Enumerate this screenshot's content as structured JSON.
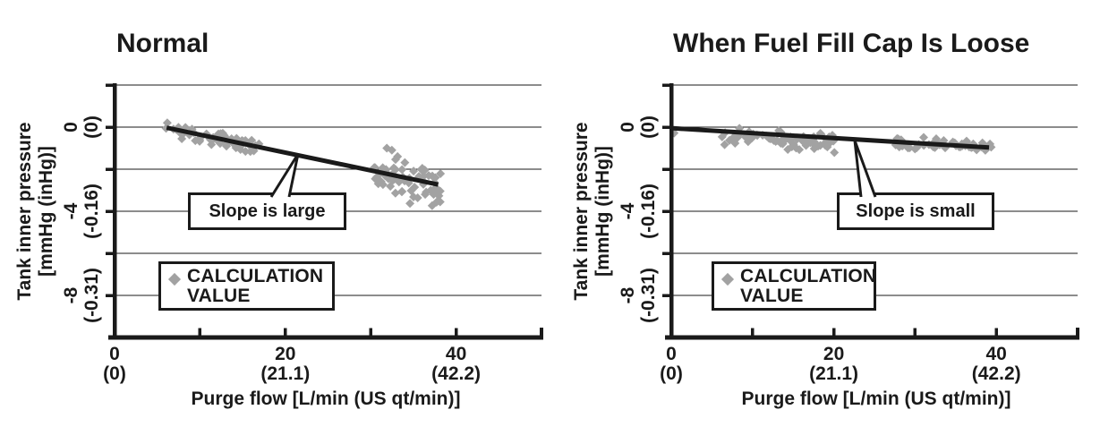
{
  "colors": {
    "ink": "#1a1a1a",
    "marker_gray": "#a2a2a2",
    "background": "#ffffff"
  },
  "chart_data": [
    {
      "id": "normal",
      "type": "scatter",
      "title": "Normal",
      "x_axis": {
        "label": "Purge flow [L/min (US qt/min)]",
        "range": [
          0,
          50
        ],
        "major_ticks": [
          {
            "value": 0,
            "label": "0",
            "sublabel": "(0)"
          },
          {
            "value": 20,
            "label": "20",
            "sublabel": "(21.1)"
          },
          {
            "value": 40,
            "label": "40",
            "sublabel": "(42.2)"
          }
        ],
        "minor_ticks": [
          10,
          30
        ]
      },
      "y_axis": {
        "label_line1": "Tank inner pressure",
        "label_line2": "[mmHg (inHg)]",
        "range": [
          -10,
          2
        ],
        "gridline_step": 2,
        "major_ticks": [
          {
            "value": 0,
            "label": "0",
            "sublabel": "(0)"
          },
          {
            "value": -4,
            "label": "-4",
            "sublabel": "(-0.16)"
          },
          {
            "value": -8,
            "label": "-8",
            "sublabel": "(-0.31)"
          }
        ]
      },
      "legend": {
        "marker": "diamond",
        "marker_color": "#a2a2a2",
        "label_line1": "CALCULATION",
        "label_line2": "VALUE"
      },
      "annotation": {
        "text": "Slope is large"
      },
      "trend_line": {
        "x1": 6.1,
        "y1": -0.03,
        "x2": 37.9,
        "y2": -2.73
      },
      "scatter_clusters": [
        {
          "count": 64,
          "x_range": [
            5.9,
            17.3
          ],
          "offset_range": [
            -0.42,
            0.32
          ],
          "seed": 7
        },
        {
          "count": 64,
          "x_range": [
            30.4,
            38.5
          ],
          "offset_range": [
            -1.35,
            1.35
          ],
          "seed": 8
        }
      ],
      "extra_points": []
    },
    {
      "id": "fuel-fill-cap-loose",
      "type": "scatter",
      "title": "When Fuel Fill Cap Is Loose",
      "x_axis": {
        "label": "Purge flow [L/min (US qt/min)]",
        "range": [
          0,
          50
        ],
        "major_ticks": [
          {
            "value": 0,
            "label": "0",
            "sublabel": "(0)"
          },
          {
            "value": 20,
            "label": "20",
            "sublabel": "(21.1)"
          },
          {
            "value": 40,
            "label": "40",
            "sublabel": "(42.2)"
          }
        ],
        "minor_ticks": [
          10,
          30
        ]
      },
      "y_axis": {
        "label_line1": "Tank inner pressure",
        "label_line2": "[mmHg (inHg)]",
        "range": [
          -10,
          2
        ],
        "gridline_step": 2,
        "major_ticks": [
          {
            "value": 0,
            "label": "0",
            "sublabel": "(0)"
          },
          {
            "value": -4,
            "label": "-4",
            "sublabel": "(-0.16)"
          },
          {
            "value": -8,
            "label": "-8",
            "sublabel": "(-0.31)"
          }
        ]
      },
      "legend": {
        "marker": "diamond",
        "marker_color": "#a2a2a2",
        "label_line1": "CALCULATION",
        "label_line2": "VALUE"
      },
      "annotation": {
        "text": "Slope is small"
      },
      "trend_line": {
        "x1": 0,
        "y1": -0.05,
        "x2": 39.1,
        "y2": -0.97
      },
      "scatter_clusters": [
        {
          "count": 72,
          "x_range": [
            5.2,
            20.2
          ],
          "offset_range": [
            -0.8,
            0.33
          ],
          "seed": 9
        },
        {
          "count": 52,
          "x_range": [
            27.6,
            39.4
          ],
          "offset_range": [
            -0.32,
            0.33
          ],
          "seed": 10
        }
      ],
      "extra_points": [
        [
          0.35,
          -0.28
        ]
      ]
    }
  ]
}
